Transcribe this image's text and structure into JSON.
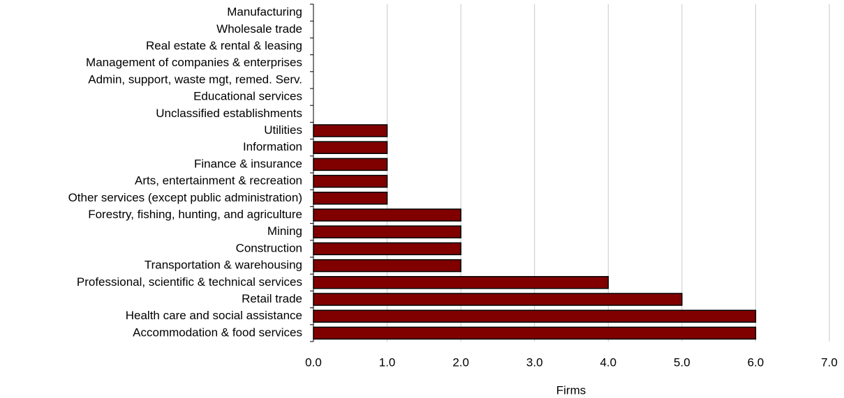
{
  "chart_data": {
    "type": "barh",
    "categories": [
      "Manufacturing",
      "Wholesale trade",
      "Real estate & rental & leasing",
      "Management of companies & enterprises",
      "Admin, support, waste mgt, remed. Serv.",
      "Educational services",
      "Unclassified establishments",
      "Utilities",
      "Information",
      "Finance & insurance",
      "Arts, entertainment & recreation",
      "Other services (except public administration)",
      "Forestry, fishing, hunting, and agriculture",
      "Mining",
      "Construction",
      "Transportation & warehousing",
      "Professional, scientific & technical services",
      "Retail trade",
      "Health care and social assistance",
      "Accommodation & food services"
    ],
    "values": [
      0,
      0,
      0,
      0,
      0,
      0,
      0,
      1,
      1,
      1,
      1,
      1,
      2,
      2,
      2,
      2,
      4,
      5,
      6,
      6
    ],
    "color": "#800000",
    "xlabel": "Firms",
    "xlim": [
      0,
      7
    ],
    "xticks": [
      {
        "value": 0,
        "label": "0.0"
      },
      {
        "value": 1,
        "label": "1.0"
      },
      {
        "value": 2,
        "label": "2.0"
      },
      {
        "value": 3,
        "label": "3.0"
      },
      {
        "value": 4,
        "label": "4.0"
      },
      {
        "value": 5,
        "label": "5.0"
      },
      {
        "value": 6,
        "label": "6.0"
      },
      {
        "value": 7,
        "label": "7.0"
      }
    ],
    "grid": true
  }
}
